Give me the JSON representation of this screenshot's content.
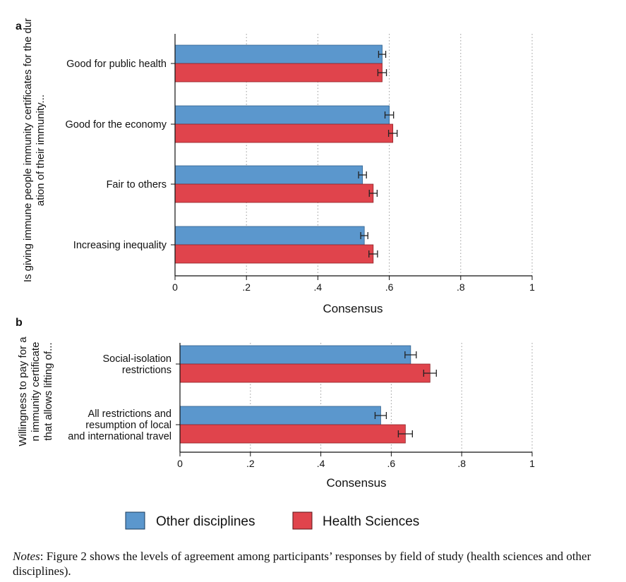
{
  "chart_data": [
    {
      "type": "bar",
      "orientation": "horizontal",
      "panel_label": "a",
      "ylabel": "Is giving immune people immunity certificates for the duration of their immunity...",
      "xlabel": "Consensus",
      "xlim": [
        0,
        1
      ],
      "xticks": [
        "0",
        ".2",
        ".4",
        ".6",
        ".8",
        "1"
      ],
      "tick_values": [
        0,
        0.2,
        0.4,
        0.6,
        0.8,
        1
      ],
      "grid": "vertical dotted",
      "categories": [
        "Good for public health",
        "Good for the economy",
        "Fair to others",
        "Increasing inequality"
      ],
      "series": [
        {
          "name": "Other disciplines",
          "color": "#5b97cd",
          "values": [
            0.58,
            0.6,
            0.525,
            0.53
          ],
          "errors": [
            0.01,
            0.012,
            0.011,
            0.01
          ]
        },
        {
          "name": "Health Sciences",
          "color": "#e0444c",
          "values": [
            0.58,
            0.61,
            0.555,
            0.555
          ],
          "errors": [
            0.012,
            0.012,
            0.011,
            0.012
          ]
        }
      ]
    },
    {
      "type": "bar",
      "orientation": "horizontal",
      "panel_label": "b",
      "ylabel": "Willingness to pay for an immunity certificate that allows lifting of...",
      "xlabel": "Consensus",
      "xlim": [
        0,
        1
      ],
      "xticks": [
        "0",
        ".2",
        ".4",
        ".6",
        ".8",
        "1"
      ],
      "tick_values": [
        0,
        0.2,
        0.4,
        0.6,
        0.8,
        1
      ],
      "grid": "vertical dotted",
      "categories": [
        "Social-isolation restrictions",
        "All restrictions and resumption of local and international travel"
      ],
      "series": [
        {
          "name": "Other disciplines",
          "color": "#5b97cd",
          "values": [
            0.655,
            0.57
          ],
          "errors": [
            0.016,
            0.016
          ]
        },
        {
          "name": "Health Sciences",
          "color": "#e0444c",
          "values": [
            0.71,
            0.64
          ],
          "errors": [
            0.018,
            0.02
          ]
        }
      ]
    }
  ],
  "legend": {
    "placement": "bottom",
    "items": [
      {
        "label": "Other disciplines",
        "color": "#5b97cd"
      },
      {
        "label": "Health Sciences",
        "color": "#e0444c"
      }
    ]
  },
  "notes": {
    "label": "Notes",
    "text": ": Figure 2 shows the levels of agreement among participants’ responses by field of study (health sciences and other disciplines)."
  }
}
